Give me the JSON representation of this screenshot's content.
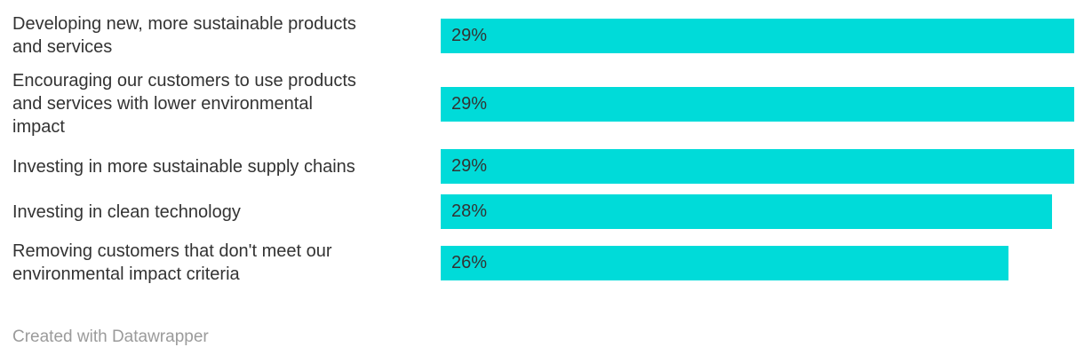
{
  "chart_data": {
    "type": "bar",
    "orientation": "horizontal",
    "categories": [
      "Developing new, more sustainable products and services",
      "Encouraging our customers to use products and services with lower environmental impact",
      "Investing in more sustainable supply chains",
      "Investing in clean technology",
      "Removing customers that don't meet our environmental impact criteria"
    ],
    "values": [
      29,
      29,
      29,
      28,
      26
    ],
    "value_labels": [
      "29%",
      "29%",
      "29%",
      "28%",
      "26%"
    ],
    "display_labels": [
      "Developing new, more sustainable products\nand services",
      "Encouraging our customers to use products\nand services with lower environmental\nimpact",
      "Investing in more sustainable supply chains",
      "Investing in clean technology",
      "Removing customers that don't meet our\nenvironmental impact criteria"
    ],
    "value_suffix": "%",
    "xlim": [
      0,
      29
    ],
    "grid": false,
    "legend": false,
    "title": "",
    "xlabel": "",
    "ylabel": "",
    "bar_color": "#00dbd9",
    "label_color": "#333333",
    "value_color": "#333333"
  },
  "footer": {
    "attribution": "Created with Datawrapper"
  }
}
